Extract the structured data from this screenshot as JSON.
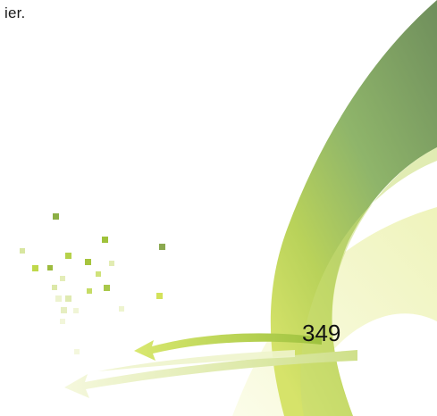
{
  "page": {
    "text_fragment": "ier.",
    "page_number": "349"
  },
  "decoration": {
    "colors": {
      "dark_green": "#7a9a64",
      "mid_green": "#9cc16a",
      "lime": "#c7d84a",
      "pale_yellow": "#f3f6c6"
    }
  }
}
